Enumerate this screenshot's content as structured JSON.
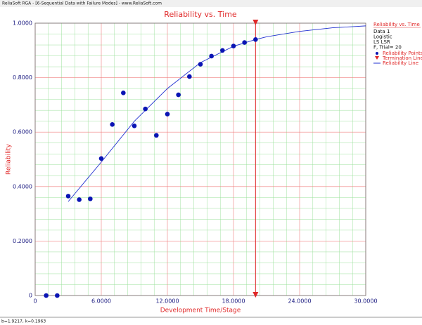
{
  "window_title": "ReliaSoft RGA - [6-Sequential Data with Failure Modes] - www.ReliaSoft.com",
  "status_text": "b=1.9217, k=0.1963",
  "chart_data": {
    "type": "scatter",
    "title": "Reliability vs. Time",
    "x_label": "Development Time/Stage",
    "y_label": "Reliability",
    "xlim": [
      0,
      30
    ],
    "ylim": [
      0,
      1
    ],
    "xticks": [
      0,
      {
        "value": 6,
        "label": "6.0000"
      },
      {
        "value": 12,
        "label": "12.0000"
      },
      {
        "value": 18,
        "label": "18.0000"
      },
      {
        "value": 24,
        "label": "24.0000"
      },
      {
        "value": 30,
        "label": "30.0000"
      }
    ],
    "yticks": [
      0,
      {
        "value": 0.2,
        "label": "0.2000"
      },
      {
        "value": 0.4,
        "label": "0.4000"
      },
      {
        "value": 0.6,
        "label": "0.6000"
      },
      {
        "value": 0.8,
        "label": "0.8000"
      },
      {
        "value": 1,
        "label": "1.0000"
      }
    ],
    "grid": true,
    "minor_grid": true,
    "legend_title": "Reliability vs. Time",
    "legend_info": [
      "Data 1",
      "Logistic",
      "LS LSR",
      "F, Trial= 20"
    ],
    "series": [
      {
        "name": "Reliability Points",
        "color": "#0a14b4",
        "style": "points",
        "x": [
          1,
          2,
          3,
          4,
          5,
          6,
          7,
          8,
          9,
          10,
          11,
          12,
          13,
          14,
          15,
          16,
          17,
          18,
          19,
          20
        ],
        "values": [
          0,
          0,
          0.365,
          0.352,
          0.355,
          0.503,
          0.628,
          0.744,
          0.623,
          0.685,
          0.588,
          0.666,
          0.737,
          0.804,
          0.849,
          0.879,
          0.9,
          0.916,
          0.929,
          0.94
        ]
      },
      {
        "name": "Termination Line",
        "color": "#e02828",
        "style": "vline",
        "x": [
          20,
          20
        ],
        "values": [
          0,
          1
        ]
      },
      {
        "name": "Reliability Line",
        "color": "#2030d0",
        "style": "line",
        "x": [
          3,
          6,
          9,
          12,
          15,
          18,
          20,
          21,
          24,
          27,
          30
        ],
        "values": [
          0.345,
          0.49,
          0.64,
          0.76,
          0.855,
          0.915,
          0.94,
          0.95,
          0.97,
          0.983,
          0.99
        ]
      }
    ]
  }
}
